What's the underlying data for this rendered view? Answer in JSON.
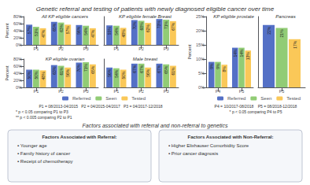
{
  "title": "Genetic referral and testing of patients with newly diagnosed eligible cancer over time",
  "subtitle": "Factors associated with referral and non-referral to genetics",
  "annotations": {
    "left": [
      "P1 = 08/2013-04/2015   P2 = 04/2015-04/2017   P3 = 04/2017-12/2018",
      "* p < 0.05 comparing P1 to P3\n** p < 0.005 comparing P2 to P1"
    ],
    "right": [
      "P4 = 10/2017-08/2018    P5 = 08/2018-12/2018",
      "* p < 0.05 comparing P4 to P5"
    ]
  },
  "boxes": [
    {
      "title": "Factors Associated with Referral:",
      "items": [
        "▪ Younger age",
        "▪ Family history of cancer",
        "▪ Receipt of chemotherapy"
      ]
    },
    {
      "title": "Factors Associated with Non-Referral:",
      "items": [
        "▪ Higher Elixhauser Comorbidity Score",
        "▪ Prior cancer diagnosis"
      ]
    }
  ],
  "chart_data": [
    {
      "type": "bar",
      "title": "All KP eligible cancers",
      "categories": [
        "P1",
        "P2",
        "P3"
      ],
      "series": [
        {
          "name": "Referred",
          "values": [
            57,
            65,
            56
          ],
          "value_labels": [
            "57%",
            "65%",
            "56%"
          ]
        },
        {
          "name": "Seen",
          "values": [
            51,
            63,
            54
          ],
          "value_labels": [
            "51%",
            "63%",
            "54%"
          ]
        },
        {
          "name": "Tested",
          "values": [
            47,
            57,
            47
          ],
          "value_labels": [
            "47%",
            "57%",
            "47%"
          ]
        }
      ],
      "ylim": [
        0,
        80
      ],
      "yticks": [
        {
          "value": 0,
          "label": "0%"
        },
        {
          "value": 20,
          "label": "20%"
        },
        {
          "value": 40,
          "label": "40%"
        },
        {
          "value": 60,
          "label": "60%"
        },
        {
          "value": 80,
          "label": "80%"
        }
      ],
      "ylabel": "Percent",
      "data_labels": true,
      "grid": false
    },
    {
      "type": "bar",
      "title": "KP eligible female Breast",
      "categories": [
        "P1",
        "P2",
        "P3"
      ],
      "series": [
        {
          "name": "Referred",
          "values": [
            55,
            70,
            73
          ],
          "value_labels": [
            "55%",
            "70%",
            "73%"
          ]
        },
        {
          "name": "Seen",
          "values": [
            54,
            68,
            71
          ],
          "value_labels": [
            "54%",
            "68%",
            "71%"
          ]
        },
        {
          "name": "Tested",
          "values": [
            48,
            62,
            67
          ],
          "value_labels": [
            "48%",
            "62%",
            "67%"
          ]
        }
      ],
      "ylim": [
        0,
        80
      ],
      "tick_labels": "x",
      "data_labels": true,
      "grid": false
    },
    {
      "type": "bar",
      "title": "KP eligible ovarian",
      "categories": [
        "P1",
        "P2",
        "P3"
      ],
      "series": [
        {
          "name": "Referred",
          "values": [
            50,
            63,
            70
          ],
          "value_labels": [
            "50%",
            "63%",
            "70%"
          ]
        },
        {
          "name": "Seen",
          "values": [
            50,
            61,
            71
          ],
          "value_labels": [
            "50%",
            "61%",
            "71%"
          ]
        },
        {
          "name": "Tested",
          "values": [
            48,
            56,
            65
          ],
          "value_labels": [
            "48%",
            "56%",
            "65%"
          ]
        }
      ],
      "ylim": [
        0,
        80
      ],
      "yticks": [
        {
          "value": 0,
          "label": "0%"
        },
        {
          "value": 20,
          "label": "20%"
        },
        {
          "value": 40,
          "label": "40%"
        },
        {
          "value": 60,
          "label": "60%"
        },
        {
          "value": 80,
          "label": "80%"
        }
      ],
      "ylabel": "Percent",
      "data_labels": true,
      "grid": false,
      "legend": "bottom"
    },
    {
      "type": "bar",
      "title": "Male breast",
      "categories": [
        "P1",
        "P2",
        "P3"
      ],
      "series": [
        {
          "name": "Referred",
          "values": [
            56,
            67,
            67
          ],
          "value_labels": [
            "56%",
            "67%",
            "67%"
          ]
        },
        {
          "name": "Seen",
          "values": [
            54,
            67,
            65
          ],
          "value_labels": [
            "54%",
            "67%",
            "65%"
          ]
        },
        {
          "name": "Tested",
          "values": [
            50,
            56,
            61
          ],
          "value_labels": [
            "50%",
            "56%",
            "61%"
          ]
        }
      ],
      "ylim": [
        0,
        80
      ],
      "tick_labels": "x",
      "data_labels": true,
      "grid": false
    },
    {
      "type": "bar",
      "title": "KP eligible prostate",
      "categories": [
        "P4",
        "P5"
      ],
      "series": [
        {
          "name": "Referred",
          "values": [
            9,
            14
          ],
          "value_labels": [
            "9%",
            "14%"
          ]
        },
        {
          "name": "Seen",
          "values": [
            9,
            14
          ],
          "value_labels": [
            "9%",
            "14%"
          ]
        },
        {
          "name": "Tested",
          "values": [
            8,
            13
          ],
          "value_labels": [
            "8%",
            "13%"
          ]
        }
      ],
      "ylim": [
        0,
        25
      ],
      "yticks": [
        {
          "value": 0,
          "label": "0%"
        },
        {
          "value": 5,
          "label": "5%"
        },
        {
          "value": 10,
          "label": "10%"
        },
        {
          "value": 15,
          "label": "15%"
        },
        {
          "value": 20,
          "label": "20%"
        },
        {
          "value": 25,
          "label": "25%"
        }
      ],
      "ylabel": "Percent",
      "data_labels": true,
      "grid": false,
      "legend": "bottom"
    },
    {
      "type": "bar",
      "title": "Pancreas",
      "categories": [
        "P5"
      ],
      "series": [
        {
          "name": "Referred",
          "values": [
            22
          ],
          "value_labels": [
            "22%"
          ]
        },
        {
          "name": "Seen",
          "values": [
            21
          ],
          "value_labels": [
            "21%"
          ]
        },
        {
          "name": "Tested",
          "values": [
            17
          ],
          "value_labels": [
            "17%"
          ]
        }
      ],
      "ylim": [
        0,
        25
      ],
      "tick_labels": "x",
      "data_labels": true,
      "grid": false
    }
  ]
}
